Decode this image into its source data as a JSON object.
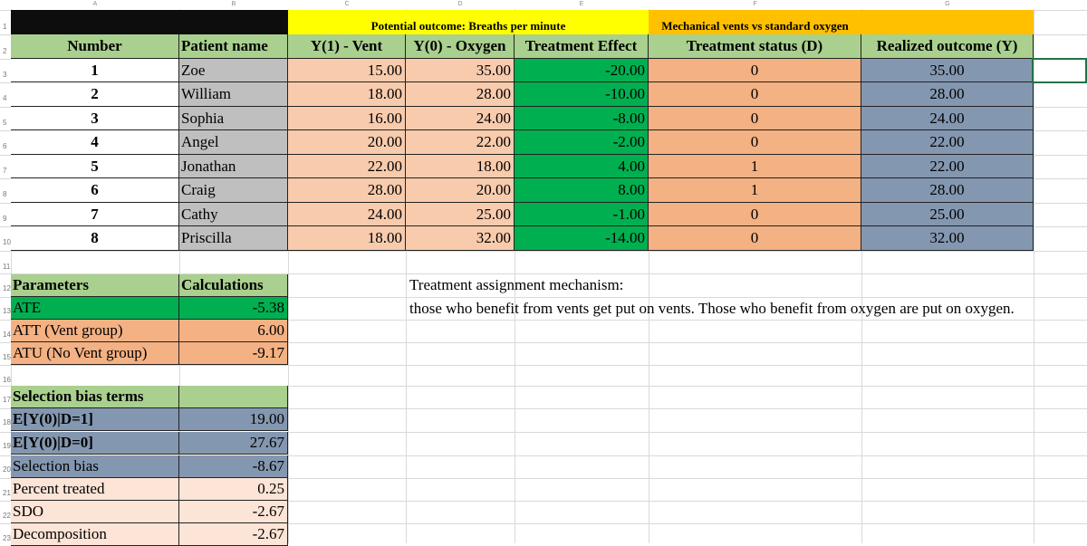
{
  "columns": [
    "A",
    "B",
    "C",
    "D",
    "E",
    "F",
    "G"
  ],
  "rows": [
    "1",
    "2",
    "3",
    "4",
    "5",
    "6",
    "7",
    "8",
    "9",
    "10",
    "11",
    "12",
    "13",
    "14",
    "15",
    "16",
    "17",
    "18",
    "19",
    "20",
    "21",
    "22",
    "23"
  ],
  "header1": {
    "potential_outcome": "Potential outcome: Breaths per minute",
    "mechanical": "Mechanical vents vs standard oxygen"
  },
  "header2": {
    "number": "Number",
    "patient": "Patient name",
    "y1": "Y(1) - Vent",
    "y0": "Y(0) - Oxygen",
    "te": "Treatment Effect",
    "status": "Treatment status (D)",
    "realized": "Realized outcome (Y)"
  },
  "patients": [
    {
      "num": "1",
      "name": "Zoe",
      "y1": "15.00",
      "y0": "35.00",
      "te": "-20.00",
      "d": "0",
      "y": "35.00"
    },
    {
      "num": "2",
      "name": "William",
      "y1": "18.00",
      "y0": "28.00",
      "te": "-10.00",
      "d": "0",
      "y": "28.00"
    },
    {
      "num": "3",
      "name": "Sophia",
      "y1": "16.00",
      "y0": "24.00",
      "te": "-8.00",
      "d": "0",
      "y": "24.00"
    },
    {
      "num": "4",
      "name": "Angel",
      "y1": "20.00",
      "y0": "22.00",
      "te": "-2.00",
      "d": "0",
      "y": "22.00"
    },
    {
      "num": "5",
      "name": "Jonathan",
      "y1": "22.00",
      "y0": "18.00",
      "te": "4.00",
      "d": "1",
      "y": "22.00"
    },
    {
      "num": "6",
      "name": "Craig",
      "y1": "28.00",
      "y0": "20.00",
      "te": "8.00",
      "d": "1",
      "y": "28.00"
    },
    {
      "num": "7",
      "name": "Cathy",
      "y1": "24.00",
      "y0": "25.00",
      "te": "-1.00",
      "d": "0",
      "y": "25.00"
    },
    {
      "num": "8",
      "name": "Priscilla",
      "y1": "18.00",
      "y0": "32.00",
      "te": "-14.00",
      "d": "0",
      "y": "32.00"
    }
  ],
  "params": {
    "header_left": "Parameters",
    "header_right": "Calculations",
    "rows": [
      {
        "label": "ATE",
        "value": "-5.38"
      },
      {
        "label": "ATT (Vent group)",
        "value": "6.00"
      },
      {
        "label": "ATU (No Vent group)",
        "value": "-9.17"
      }
    ]
  },
  "bias": {
    "header": "Selection bias terms",
    "rows": [
      {
        "label": "E[Y(0)|D=1]",
        "value": "19.00"
      },
      {
        "label": "E[Y(0)|D=0]",
        "value": "27.67"
      },
      {
        "label": "Selection bias",
        "value": "-8.67"
      },
      {
        "label": "Percent treated",
        "value": "0.25"
      },
      {
        "label": "SDO",
        "value": "-2.67"
      },
      {
        "label": "Decomposition",
        "value": "-2.67"
      }
    ]
  },
  "notes": {
    "line1": "Treatment assignment mechanism:",
    "line2": "those who benefit from vents get put on vents. Those who benefit from oxygen are put on oxygen."
  },
  "colors": {
    "black": "#0d0d0d",
    "yellow": "#ffff00",
    "orange_header": "#ffc000",
    "green_light": "#a9d08e",
    "gray": "#bfbfbf",
    "peach": "#f8cbad",
    "green": "#00b050",
    "orange": "#f4b183",
    "blue_gray": "#8497b0",
    "light_peach": "#fce4d6"
  }
}
